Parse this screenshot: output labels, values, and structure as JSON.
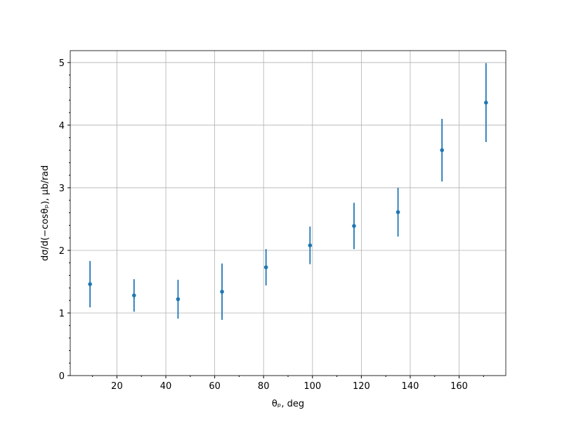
{
  "chart_data": {
    "type": "errorbar",
    "xlabel": "θₚ, deg",
    "ylabel": "dσ/d(−cosθₚ), μb/rad",
    "x": [
      9,
      27,
      45,
      63,
      81,
      99,
      117,
      135,
      153,
      171
    ],
    "series": [
      {
        "color": "#1f77b4",
        "values": [
          1.46,
          1.28,
          1.22,
          1.34,
          1.73,
          2.08,
          2.39,
          2.61,
          3.6,
          4.36
        ],
        "errors": [
          0.37,
          0.26,
          0.31,
          0.45,
          0.29,
          0.3,
          0.37,
          0.39,
          0.5,
          0.63
        ]
      }
    ],
    "xlim": [
      0.9,
      179.1
    ],
    "ylim": [
      0,
      5.19
    ],
    "xticks": [
      20,
      40,
      60,
      80,
      100,
      120,
      140,
      160
    ],
    "yticks": [
      0,
      1,
      2,
      3,
      4,
      5
    ],
    "xminorticks": [
      10,
      30,
      50,
      70,
      90,
      110,
      130,
      150,
      170
    ],
    "yminorticks": [
      0.2,
      0.4,
      0.6,
      0.8,
      1.2,
      1.4,
      1.6,
      1.8,
      2.2,
      2.4,
      2.6,
      2.8,
      3.2,
      3.4,
      3.6,
      3.8,
      4.2,
      4.4,
      4.6,
      4.8
    ],
    "grid": true
  }
}
